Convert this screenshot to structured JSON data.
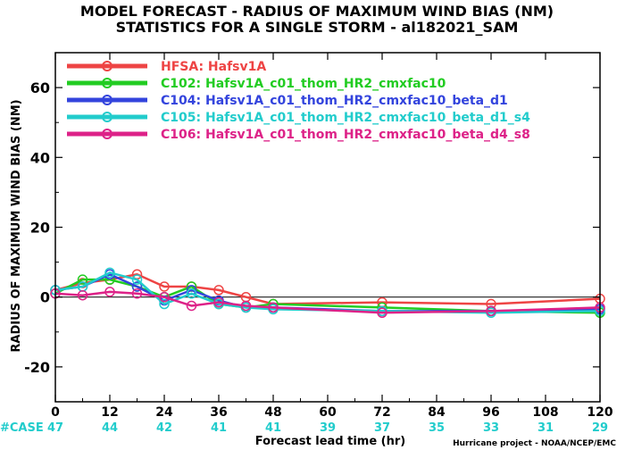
{
  "chart_data": {
    "type": "line",
    "title": "MODEL FORECAST - RADIUS OF MAXIMUM WIND BIAS (NM)",
    "subtitle": "STATISTICS FOR A SINGLE STORM - al182021_SAM",
    "xlabel": "Forecast lead time (hr)",
    "ylabel": "RADIUS OF MAXIMUM WIND BIAS (NM)",
    "xlim": [
      0,
      120
    ],
    "ylim": [
      -30,
      70
    ],
    "x_ticks": [
      0,
      12,
      24,
      36,
      48,
      60,
      72,
      84,
      96,
      108,
      120
    ],
    "y_ticks": [
      -20,
      0,
      20,
      40,
      60
    ],
    "legend_position": "top-left",
    "case_label": "#CASE",
    "cases": [
      "47",
      "44",
      "42",
      "41",
      "41",
      "39",
      "37",
      "35",
      "33",
      "31",
      "29"
    ],
    "credit": "Hurricane project - NOAA/NCEP/EMC",
    "series": [
      {
        "name": "HFSA: Hafsv1A",
        "color": "#ee4444",
        "x": [
          0,
          6,
          12,
          18,
          24,
          30,
          36,
          42,
          48,
          72,
          96,
          120
        ],
        "values": [
          2,
          4,
          5,
          6.5,
          3,
          3,
          2,
          0,
          -2,
          -1.5,
          -2,
          -0.5
        ]
      },
      {
        "name": "C102: Hafsv1A_c01_thom_HR2_cmxfac10",
        "color": "#22cc22",
        "x": [
          0,
          6,
          12,
          18,
          24,
          30,
          36,
          42,
          48,
          72,
          96,
          120
        ],
        "values": [
          1,
          5,
          5,
          3,
          0,
          3,
          -2,
          -3,
          -2,
          -3,
          -4,
          -4.5
        ]
      },
      {
        "name": "C104: Hafsv1A_c01_thom_HR2_cmxfac10_beta_d1",
        "color": "#3344dd",
        "x": [
          0,
          6,
          12,
          18,
          24,
          30,
          36,
          42,
          48,
          72,
          96,
          120
        ],
        "values": [
          2,
          3,
          6.5,
          3,
          -1,
          2,
          -1,
          -3,
          -3,
          -4,
          -4,
          -3.5
        ]
      },
      {
        "name": "C105: Hafsv1A_c01_thom_HR2_cmxfac10_beta_d1_s4",
        "color": "#22cccc",
        "x": [
          0,
          6,
          12,
          18,
          24,
          30,
          36,
          42,
          48,
          72,
          96,
          120
        ],
        "values": [
          2,
          3,
          7,
          5,
          -2,
          1,
          -2,
          -3,
          -3.5,
          -4,
          -4.5,
          -4
        ]
      },
      {
        "name": "C106: Hafsv1A_c01_thom_HR2_cmxfac10_beta_d4_s8",
        "color": "#dd2288",
        "x": [
          0,
          6,
          12,
          18,
          24,
          30,
          36,
          42,
          48,
          72,
          96,
          120
        ],
        "values": [
          1,
          0.5,
          1.5,
          1,
          0,
          -2.5,
          -1.5,
          -2.5,
          -3,
          -4.5,
          -4,
          -3
        ]
      }
    ]
  },
  "colors": {
    "case_text": "#22cccc",
    "axis": "#000000",
    "zero_line": "#000000"
  }
}
